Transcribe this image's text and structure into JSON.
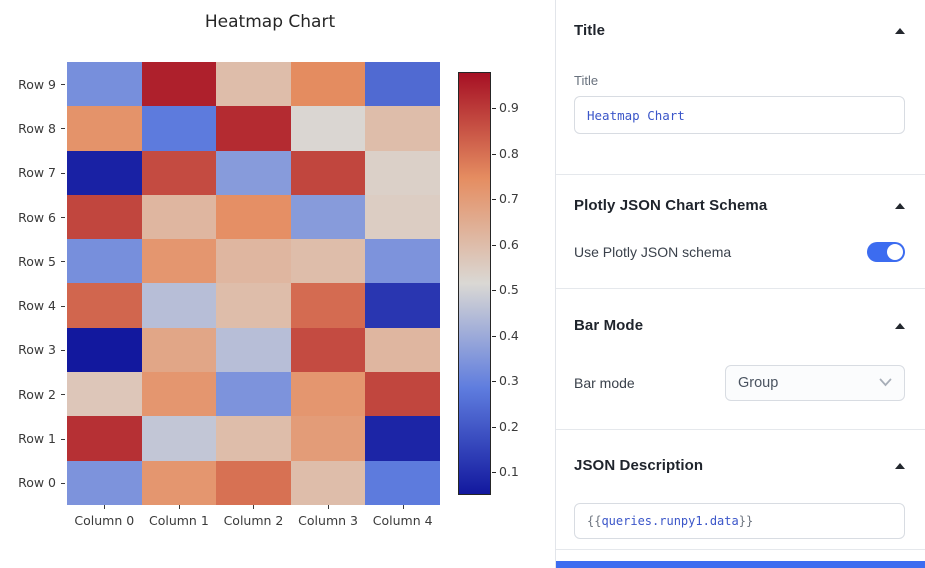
{
  "chart_data": {
    "type": "heatmap",
    "title": "Heatmap Chart",
    "x_categories": [
      "Column 0",
      "Column 1",
      "Column 2",
      "Column 3",
      "Column 4"
    ],
    "y_categories_top_to_bottom": [
      "Row 9",
      "Row 8",
      "Row 7",
      "Row 6",
      "Row 5",
      "Row 4",
      "Row 3",
      "Row 2",
      "Row 1",
      "Row 0"
    ],
    "values_top_to_bottom": [
      [
        0.33,
        0.95,
        0.6,
        0.75,
        0.24
      ],
      [
        0.73,
        0.28,
        0.93,
        0.52,
        0.6
      ],
      [
        0.07,
        0.87,
        0.36,
        0.88,
        0.54
      ],
      [
        0.88,
        0.62,
        0.74,
        0.36,
        0.55
      ],
      [
        0.33,
        0.72,
        0.62,
        0.6,
        0.34
      ],
      [
        0.82,
        0.45,
        0.6,
        0.81,
        0.12
      ],
      [
        0.05,
        0.67,
        0.45,
        0.87,
        0.62
      ],
      [
        0.57,
        0.72,
        0.34,
        0.72,
        0.88
      ],
      [
        0.92,
        0.47,
        0.6,
        0.7,
        0.08
      ],
      [
        0.34,
        0.72,
        0.8,
        0.6,
        0.28
      ]
    ],
    "vmin": 0.05,
    "vmax": 0.98,
    "colorbar_ticks": [
      {
        "label": "0.9",
        "value": 0.9
      },
      {
        "label": "0.8",
        "value": 0.8
      },
      {
        "label": "0.7",
        "value": 0.7
      },
      {
        "label": "0.6",
        "value": 0.6
      },
      {
        "label": "0.5",
        "value": 0.5
      },
      {
        "label": "0.4",
        "value": 0.4
      },
      {
        "label": "0.3",
        "value": 0.3
      },
      {
        "label": "0.2",
        "value": 0.2
      },
      {
        "label": "0.1",
        "value": 0.1
      }
    ],
    "colormap_stops": [
      {
        "t": 0.0,
        "color": "#12189e"
      },
      {
        "t": 0.25,
        "color": "#5e7cde"
      },
      {
        "t": 0.5,
        "color": "#dad8d4"
      },
      {
        "t": 0.75,
        "color": "#e58d61"
      },
      {
        "t": 1.0,
        "color": "#a61024"
      }
    ],
    "legend_position": "colorbar-right",
    "grid": false
  },
  "inspector": {
    "accent_color": "#3c6cf0",
    "title_section": {
      "header": "Title",
      "field_label": "Title",
      "input_value": "Heatmap Chart"
    },
    "plotly_section": {
      "header": "Plotly JSON Chart Schema",
      "toggle_label": "Use Plotly JSON schema",
      "toggle_on": true
    },
    "barmode_section": {
      "header": "Bar Mode",
      "field_label": "Bar mode",
      "selected_value": "Group"
    },
    "json_section": {
      "header": "JSON Description",
      "value": "{{queries.runpy1.data}}",
      "value_open": "{{",
      "value_inner": "queries.runpy1.data",
      "value_close": "}}"
    }
  }
}
